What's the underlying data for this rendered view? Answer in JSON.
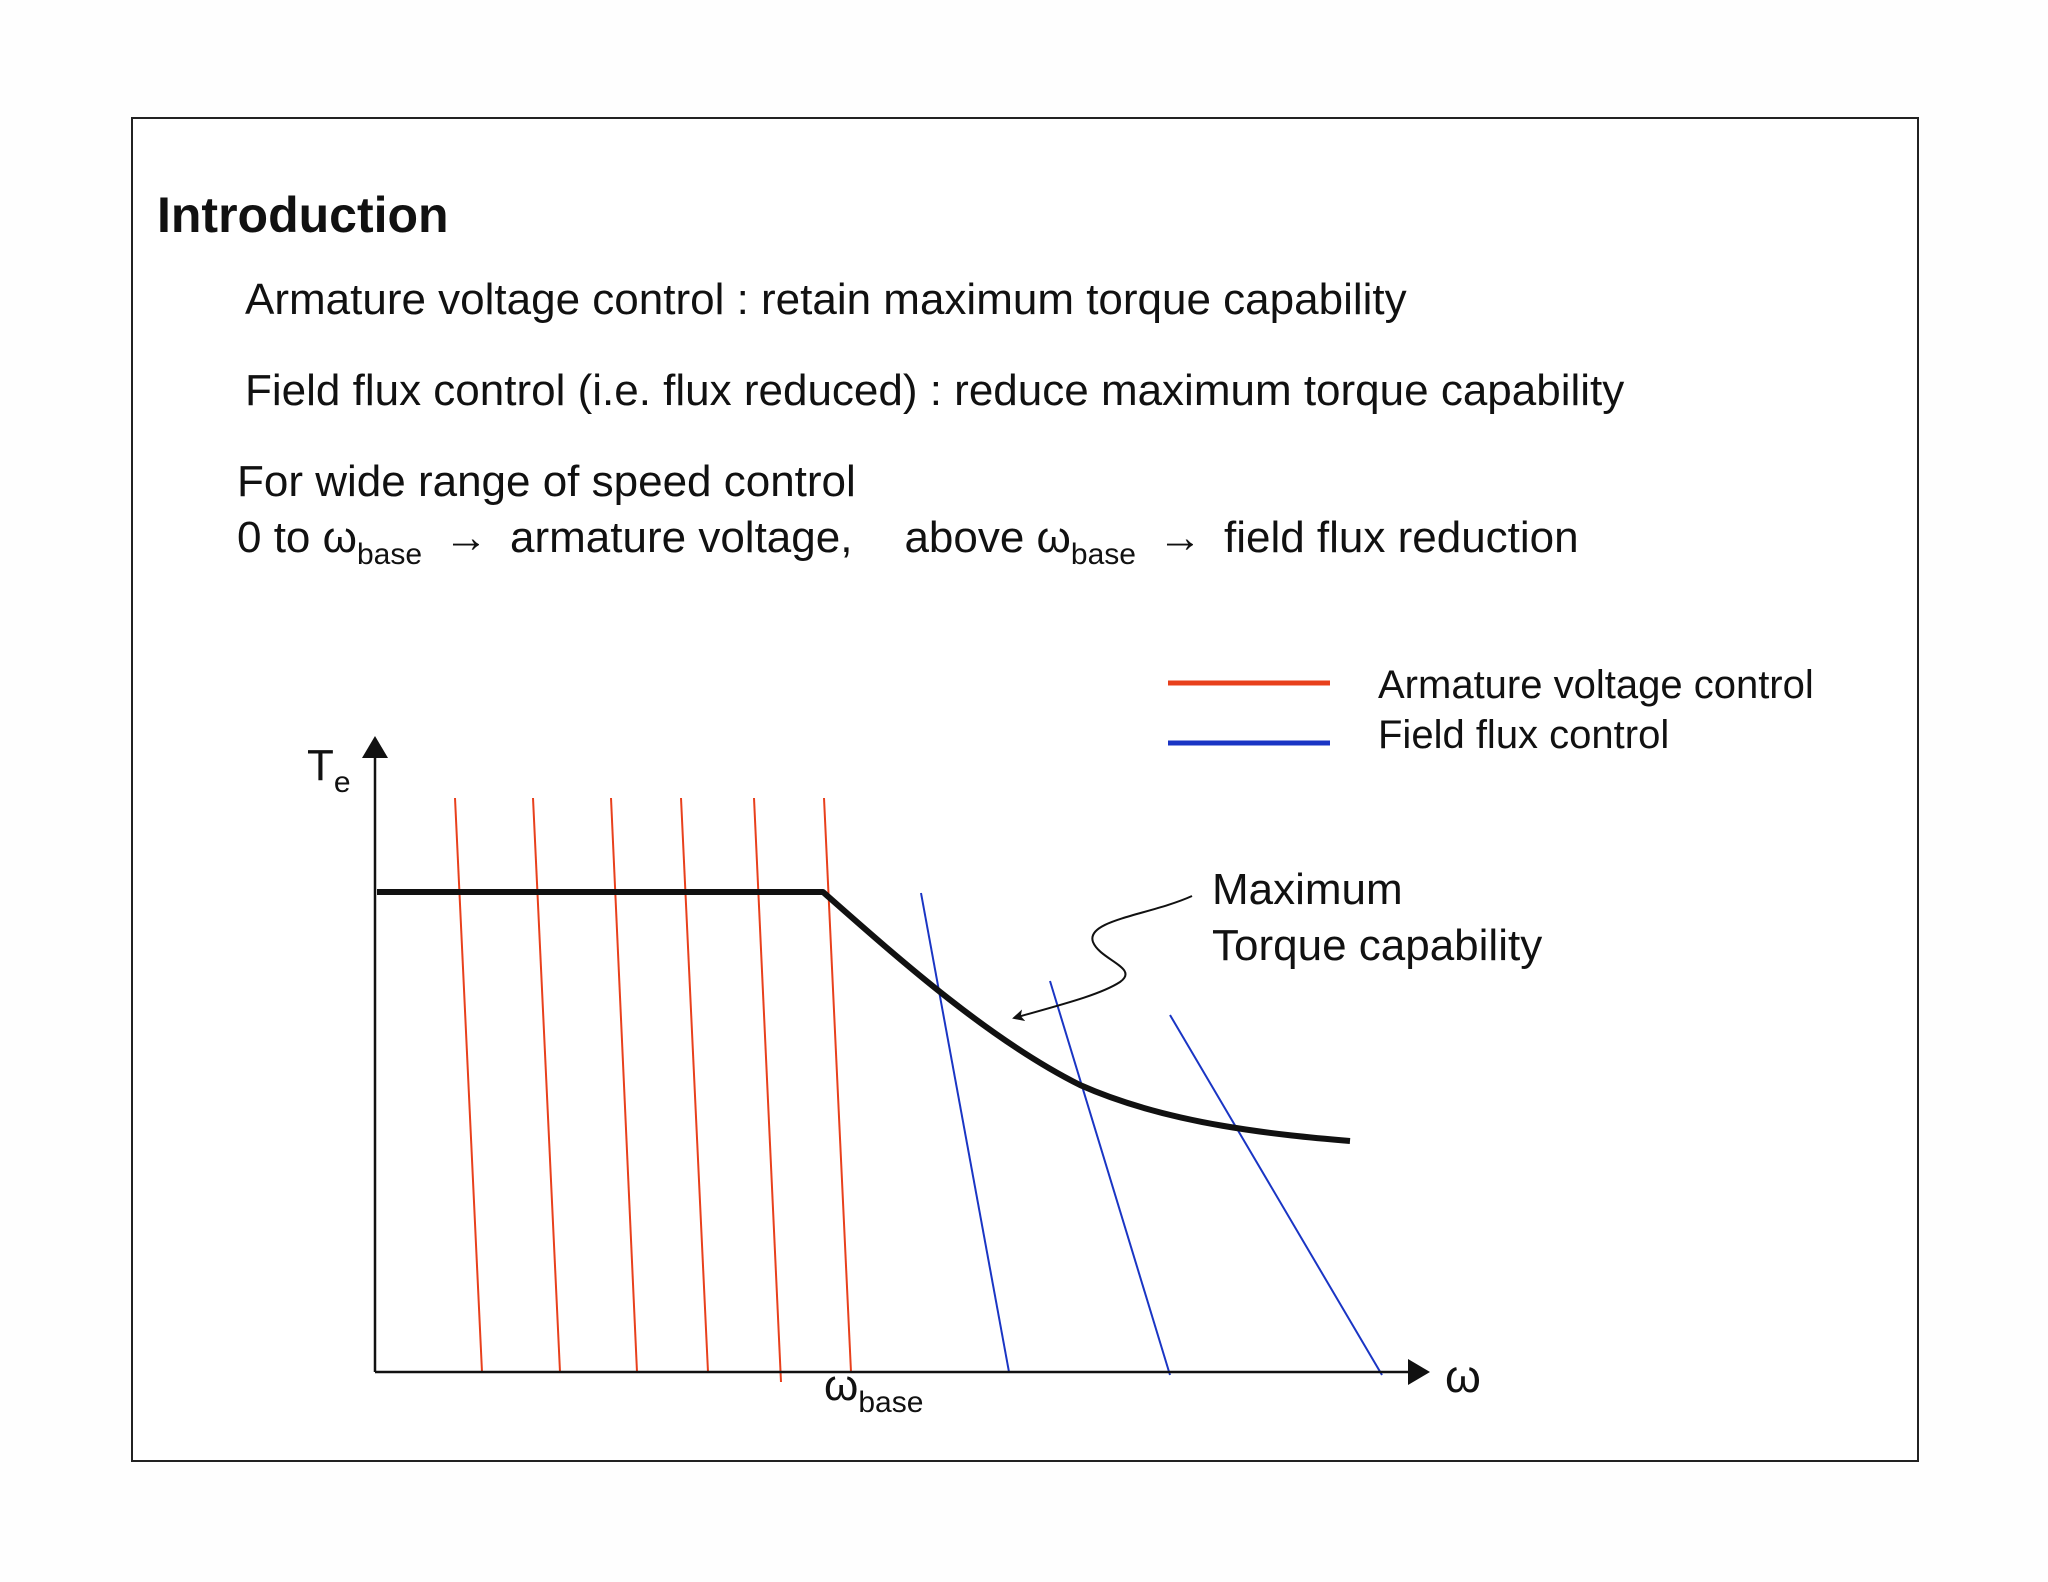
{
  "slide": {
    "title": "Introduction",
    "lines": [
      "Armature voltage control : retain maximum torque capability",
      "Field flux control (i.e. flux reduced)  : reduce maximum torque capability",
      "For wide range of speed control"
    ],
    "speed_line": {
      "prefix": "0 to ω",
      "sub1": "base",
      "arrow1": "→",
      "part2": "armature voltage,",
      "part3": "above ω",
      "sub2": "base",
      "arrow2": "→",
      "part4": "field flux reduction"
    }
  },
  "diagram": {
    "y_axis_label": "T",
    "y_axis_sub": "e",
    "x_axis_label": "ω",
    "x_tick_label": "ω",
    "x_tick_sub": "base",
    "annotation_line1": "Maximum",
    "annotation_line2": "Torque capability",
    "legend": [
      {
        "label": "Armature voltage control",
        "color": "#e8401c"
      },
      {
        "label": "Field flux control",
        "color": "#1a35c4"
      }
    ],
    "curve_color": "#111111"
  }
}
